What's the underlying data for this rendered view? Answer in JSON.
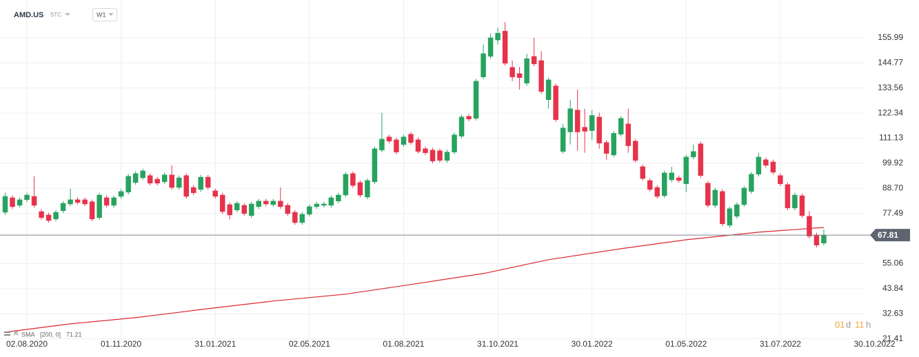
{
  "chart_data": {
    "type": "candlestick",
    "title": "AMD.US",
    "subtitle": "STC",
    "interval": "W1",
    "up_color": "#27a35f",
    "down_color": "#e6334b",
    "x": [
      "2020-07-12",
      "2020-07-19",
      "2020-07-26",
      "2020-08-02",
      "2020-08-09",
      "2020-08-16",
      "2020-08-23",
      "2020-08-30",
      "2020-09-06",
      "2020-09-13",
      "2020-09-20",
      "2020-09-27",
      "2020-10-04",
      "2020-10-11",
      "2020-10-18",
      "2020-10-25",
      "2020-11-01",
      "2020-11-08",
      "2020-11-15",
      "2020-11-22",
      "2020-11-29",
      "2020-12-06",
      "2020-12-13",
      "2020-12-20",
      "2020-12-27",
      "2021-01-03",
      "2021-01-10",
      "2021-01-17",
      "2021-01-24",
      "2021-01-31",
      "2021-02-07",
      "2021-02-14",
      "2021-02-21",
      "2021-02-28",
      "2021-03-07",
      "2021-03-14",
      "2021-03-21",
      "2021-03-28",
      "2021-04-04",
      "2021-04-11",
      "2021-04-18",
      "2021-04-25",
      "2021-05-02",
      "2021-05-09",
      "2021-05-16",
      "2021-05-23",
      "2021-05-30",
      "2021-06-06",
      "2021-06-13",
      "2021-06-20",
      "2021-06-27",
      "2021-07-04",
      "2021-07-11",
      "2021-07-18",
      "2021-07-25",
      "2021-08-01",
      "2021-08-08",
      "2021-08-15",
      "2021-08-22",
      "2021-08-29",
      "2021-09-05",
      "2021-09-12",
      "2021-09-19",
      "2021-09-26",
      "2021-10-03",
      "2021-10-10",
      "2021-10-17",
      "2021-10-24",
      "2021-10-31",
      "2021-11-07",
      "2021-11-14",
      "2021-11-21",
      "2021-11-28",
      "2021-12-05",
      "2021-12-12",
      "2021-12-19",
      "2021-12-26",
      "2022-01-02",
      "2022-01-09",
      "2022-01-16",
      "2022-01-23",
      "2022-01-30",
      "2022-02-06",
      "2022-02-13",
      "2022-02-20",
      "2022-02-27",
      "2022-03-06",
      "2022-03-13",
      "2022-03-20",
      "2022-03-27",
      "2022-04-03",
      "2022-04-10",
      "2022-04-17",
      "2022-04-24",
      "2022-05-01",
      "2022-05-08",
      "2022-05-15",
      "2022-05-22",
      "2022-05-29",
      "2022-06-05",
      "2022-06-12",
      "2022-06-19",
      "2022-06-26",
      "2022-07-03",
      "2022-07-10",
      "2022-07-17",
      "2022-07-24",
      "2022-07-31",
      "2022-08-07",
      "2022-08-14",
      "2022-08-21",
      "2022-08-28",
      "2022-09-04",
      "2022-09-11"
    ],
    "open": [
      78.0,
      84.5,
      81.1,
      83.6,
      85.1,
      78.3,
      76.8,
      75.0,
      78.7,
      81.7,
      83.6,
      83.6,
      82.7,
      75.6,
      84.5,
      81.1,
      85.1,
      87.0,
      91.3,
      93.4,
      94.4,
      92.8,
      91.6,
      94.7,
      89.1,
      94.4,
      89.1,
      88.2,
      93.7,
      87.6,
      85.7,
      81.4,
      79.0,
      81.1,
      76.5,
      80.5,
      83.0,
      81.4,
      83.0,
      81.1,
      78.0,
      73.4,
      77.1,
      80.5,
      81.1,
      81.1,
      83.0,
      85.7,
      95.3,
      91.3,
      84.8,
      91.6,
      105.8,
      111.7,
      110.4,
      108.3,
      112.9,
      110.4,
      106.4,
      105.8,
      105.5,
      101.2,
      104.9,
      112.0,
      120.9,
      120.0,
      138.5,
      147.7,
      155.0,
      159.0,
      142.8,
      140.0,
      135.7,
      147.7,
      145.8,
      128.3,
      134.5,
      105.2,
      113.9,
      123.7,
      116.0,
      114.5,
      120.6,
      109.2,
      103.6,
      112.9,
      117.5,
      109.8,
      98.4,
      92.2,
      89.1,
      85.4,
      92.5,
      93.4,
      90.7,
      102.7,
      108.6,
      91.0,
      81.1,
      87.3,
      72.2,
      76.2,
      81.4,
      87.3,
      95.0,
      101.5,
      100.5,
      94.4,
      90.4,
      79.9,
      85.4,
      76.2,
      67.9,
      64.2
    ],
    "high": [
      86.7,
      85.5,
      84.6,
      86.7,
      94.1,
      79.3,
      77.8,
      79.0,
      83.0,
      88.5,
      84.6,
      84.6,
      83.7,
      86.7,
      85.5,
      85.5,
      88.3,
      95.1,
      96.3,
      97.5,
      95.4,
      93.8,
      95.7,
      99.0,
      94.4,
      95.4,
      90.1,
      94.7,
      94.7,
      88.6,
      86.7,
      82.4,
      83.0,
      82.1,
      82.7,
      84.0,
      84.0,
      84.0,
      89.1,
      82.1,
      79.0,
      78.1,
      81.5,
      82.7,
      82.7,
      85.5,
      86.7,
      96.0,
      96.3,
      92.3,
      93.2,
      107.4,
      122.5,
      112.7,
      111.4,
      112.7,
      113.9,
      111.4,
      107.4,
      106.8,
      106.5,
      105.9,
      113.6,
      121.6,
      121.9,
      137.6,
      153.0,
      158.0,
      160.5,
      163.0,
      145.8,
      143.0,
      148.9,
      156.0,
      150.0,
      138.2,
      135.5,
      117.5,
      128.3,
      132.9,
      124.3,
      123.7,
      122.5,
      110.2,
      114.3,
      121.0,
      124.3,
      110.8,
      99.4,
      93.2,
      90.1,
      96.6,
      98.4,
      94.4,
      103.7,
      108.3,
      109.6,
      92.0,
      88.9,
      88.3,
      80.6,
      82.4,
      89.8,
      96.0,
      104.6,
      102.5,
      101.5,
      95.4,
      91.4,
      86.7,
      86.4,
      78.5,
      68.9,
      70.4
    ],
    "low": [
      76.8,
      79.5,
      80.1,
      82.6,
      80.1,
      74.6,
      73.3,
      74.0,
      77.7,
      80.7,
      81.4,
      80.7,
      74.0,
      74.6,
      80.1,
      80.1,
      84.1,
      86.0,
      90.3,
      92.4,
      90.0,
      90.0,
      90.6,
      88.1,
      88.1,
      84.1,
      85.7,
      87.2,
      88.1,
      84.1,
      77.3,
      74.8,
      78.0,
      76.4,
      75.5,
      79.5,
      80.7,
      80.4,
      79.5,
      76.4,
      72.4,
      72.4,
      76.1,
      79.5,
      80.1,
      80.1,
      82.0,
      84.7,
      89.0,
      84.7,
      83.8,
      90.6,
      104.8,
      108.8,
      103.9,
      107.3,
      108.2,
      104.2,
      103.6,
      99.9,
      100.2,
      100.2,
      103.9,
      111.0,
      118.7,
      119.0,
      137.5,
      146.7,
      153.0,
      143.6,
      136.6,
      132.9,
      134.5,
      143.3,
      131.0,
      124.3,
      118.4,
      104.2,
      108.3,
      105.5,
      104.6,
      110.4,
      106.4,
      101.5,
      102.7,
      111.9,
      104.6,
      100.2,
      92.1,
      87.2,
      84.1,
      84.4,
      91.5,
      91.2,
      87.0,
      101.7,
      93.4,
      80.1,
      80.1,
      71.8,
      71.2,
      75.2,
      80.4,
      86.3,
      94.0,
      98.0,
      94.9,
      89.7,
      78.9,
      78.9,
      75.5,
      66.3,
      62.3,
      63.2
    ],
    "close": [
      85.1,
      80.5,
      83.6,
      85.7,
      81.1,
      75.6,
      74.3,
      78.0,
      82.0,
      83.6,
      82.4,
      81.7,
      75.0,
      85.7,
      81.1,
      84.5,
      87.3,
      94.1,
      95.3,
      96.5,
      91.0,
      91.0,
      94.7,
      89.1,
      93.4,
      85.1,
      86.7,
      93.7,
      89.1,
      85.1,
      78.3,
      76.8,
      82.0,
      77.4,
      81.7,
      83.0,
      81.7,
      83.0,
      80.5,
      77.4,
      73.4,
      77.1,
      80.5,
      81.7,
      81.7,
      84.5,
      85.7,
      95.0,
      90.0,
      85.7,
      92.2,
      106.4,
      110.7,
      109.8,
      104.9,
      111.7,
      109.2,
      105.2,
      104.6,
      100.9,
      101.2,
      104.9,
      112.6,
      120.6,
      119.7,
      136.6,
      148.9,
      156.0,
      158.1,
      144.6,
      138.5,
      138.2,
      146.7,
      144.3,
      132.0,
      137.2,
      119.4,
      115.7,
      124.3,
      113.9,
      114.2,
      121.3,
      108.9,
      104.3,
      113.3,
      120.0,
      107.7,
      101.2,
      93.1,
      88.2,
      85.1,
      95.6,
      95.6,
      92.2,
      102.7,
      105.2,
      94.4,
      81.1,
      87.9,
      72.8,
      79.6,
      81.4,
      88.8,
      95.0,
      102.7,
      99.0,
      95.9,
      90.7,
      79.9,
      85.7,
      76.5,
      67.3,
      63.3,
      67.81
    ],
    "sma": {
      "name": "SMA",
      "params": "[200, 0]",
      "color": "#d9262e",
      "x": [
        "2020-07-12",
        "2020-09-13",
        "2020-11-15",
        "2021-01-24",
        "2021-03-28",
        "2021-06-06",
        "2021-08-08",
        "2021-10-17",
        "2021-12-19",
        "2022-02-27",
        "2022-05-01",
        "2022-07-10",
        "2022-09-11"
      ],
      "values": [
        24.4,
        28.1,
        30.9,
        34.9,
        38.3,
        41.4,
        45.7,
        50.6,
        56.8,
        61.7,
        65.7,
        69.1,
        71.21
      ]
    },
    "xlim": [
      "2020-07-07",
      "2022-10-21"
    ],
    "xticks": [
      {
        "value": "2020-08-02",
        "label": "02.08.2020"
      },
      {
        "value": "2020-11-01",
        "label": "01.11.2020"
      },
      {
        "value": "2021-01-31",
        "label": "31.01.2021"
      },
      {
        "value": "2021-05-02",
        "label": "02.05.2021"
      },
      {
        "value": "2021-08-01",
        "label": "01.08.2021"
      },
      {
        "value": "2021-10-31",
        "label": "31.10.2021"
      },
      {
        "value": "2022-01-30",
        "label": "30.01.2022"
      },
      {
        "value": "2022-05-01",
        "label": "01.05.2022"
      },
      {
        "value": "2022-07-31",
        "label": "31.07.2022"
      },
      {
        "value": "2022-10-30",
        "label": "30.10.2022"
      }
    ],
    "ylim": [
      17.3,
      172.9
    ],
    "yticks": [
      21.41,
      32.63,
      43.84,
      55.06,
      77.49,
      {
        "value": 88.7,
        "label": "88.70"
      },
      99.92,
      111.13,
      122.34,
      133.56,
      144.77,
      155.99
    ],
    "grid": true,
    "countdown": [
      "01",
      "d",
      "11",
      "h"
    ]
  }
}
